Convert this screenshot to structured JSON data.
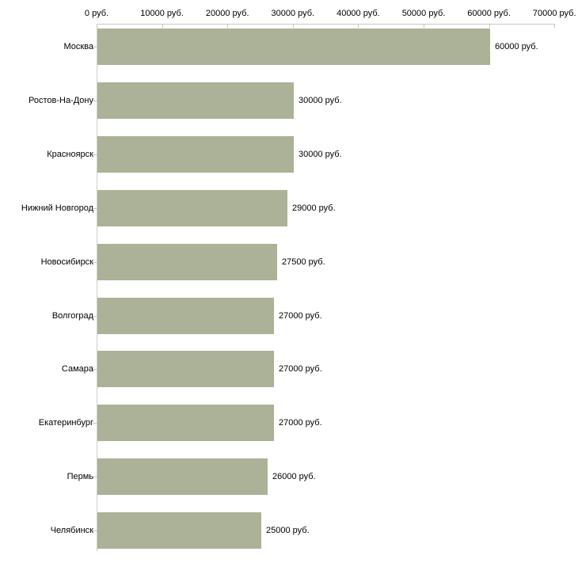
{
  "chart_data": {
    "type": "bar",
    "orientation": "horizontal",
    "unit_suffix": " руб.",
    "categories": [
      "Москва",
      "Ростов-На-Дону",
      "Красноярск",
      "Нижний Новгород",
      "Новосибирск",
      "Волгоград",
      "Самара",
      "Екатеринбург",
      "Пермь",
      "Челябинск"
    ],
    "values": [
      60000,
      30000,
      30000,
      29000,
      27500,
      27000,
      27000,
      27000,
      26000,
      25000
    ],
    "bar_labels": [
      "60000 руб.",
      "30000 руб.",
      "30000 руб.",
      "29000 руб.",
      "27500 руб.",
      "27000 руб.",
      "27000 руб.",
      "27000 руб.",
      "26000 руб.",
      "25000 руб."
    ],
    "x_axis": {
      "position": "top",
      "range": [
        0,
        70000
      ],
      "ticks": [
        0,
        10000,
        20000,
        30000,
        40000,
        50000,
        60000,
        70000
      ],
      "tick_labels": [
        "0 руб.",
        "10000 руб.",
        "20000 руб.",
        "30000 руб.",
        "40000 руб.",
        "50000 руб.",
        "60000 руб.",
        "70000 руб."
      ]
    },
    "grid": false,
    "legend": false,
    "colors": {
      "bar": "#abb297",
      "axis_line": "#c8c8c8",
      "tick_mark": "#c9c9a0",
      "text": "#000000",
      "background": "#ffffff"
    }
  }
}
